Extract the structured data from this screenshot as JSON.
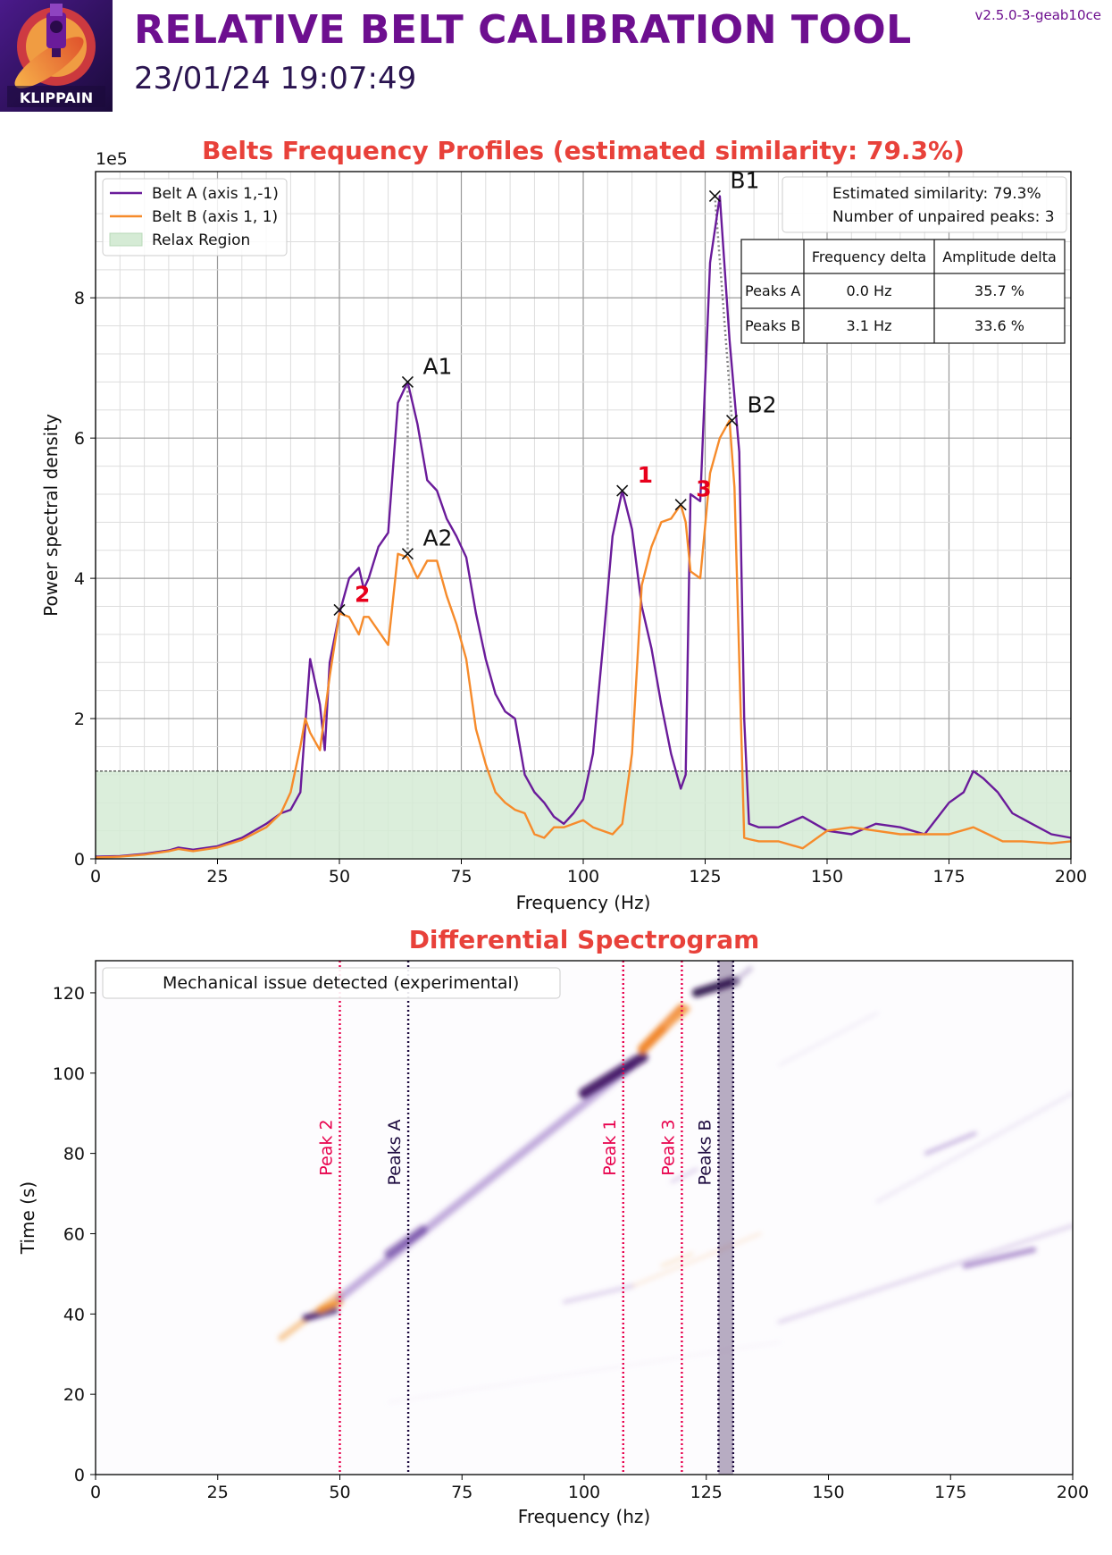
{
  "header": {
    "title": "RELATIVE BELT CALIBRATION TOOL",
    "timestamp": "23/01/24 19:07:49",
    "version": "v2.5.0-3-geab10ce",
    "logo_text": "KLIPPAIN"
  },
  "colors": {
    "title": "#6d0f8f",
    "chart_title": "#e8413a",
    "belt_a": "#6a1b9a",
    "belt_b": "#f68b2b",
    "relax": "#d5ebd5",
    "peak_marker": "#e8004c",
    "peaks_ab": "#1d0a3f"
  },
  "chart_data": [
    {
      "type": "line",
      "title": "Belts Frequency Profiles (estimated similarity: 79.3%)",
      "xlabel": "Frequency (Hz)",
      "ylabel": "Power spectral density",
      "y_multiplier": "1e5",
      "xlim": [
        0,
        200
      ],
      "ylim": [
        0,
        9.8
      ],
      "xticks": [
        0,
        25,
        50,
        75,
        100,
        125,
        150,
        175,
        200
      ],
      "yticks": [
        0,
        2,
        4,
        6,
        8
      ],
      "grid": true,
      "legend_position": "top-left",
      "relax_threshold": 1.25,
      "series": [
        {
          "name": "Belt A (axis 1,-1)",
          "x": [
            0,
            5,
            10,
            15,
            17,
            20,
            25,
            30,
            35,
            38,
            40,
            42,
            44,
            46,
            47,
            48,
            50,
            52,
            54,
            55,
            56,
            58,
            60,
            62,
            64,
            66,
            68,
            70,
            72,
            74,
            76,
            78,
            80,
            82,
            84,
            86,
            88,
            90,
            92,
            94,
            96,
            98,
            100,
            102,
            104,
            106,
            108,
            110,
            112,
            114,
            116,
            118,
            120,
            121,
            122,
            124,
            126,
            128,
            130,
            132,
            133,
            134,
            136,
            140,
            145,
            150,
            155,
            160,
            165,
            170,
            175,
            178,
            180,
            182,
            185,
            188,
            192,
            196,
            200
          ],
          "values": [
            0.03,
            0.04,
            0.07,
            0.12,
            0.16,
            0.13,
            0.18,
            0.3,
            0.5,
            0.65,
            0.7,
            0.95,
            2.85,
            2.2,
            1.55,
            2.8,
            3.5,
            4.0,
            4.15,
            3.85,
            4.0,
            4.45,
            4.65,
            6.5,
            6.8,
            6.2,
            5.4,
            5.25,
            4.85,
            4.6,
            4.3,
            3.5,
            2.85,
            2.35,
            2.1,
            2.0,
            1.2,
            0.95,
            0.8,
            0.6,
            0.5,
            0.65,
            0.85,
            1.5,
            3.0,
            4.6,
            5.25,
            4.7,
            3.6,
            3.0,
            2.2,
            1.5,
            1.0,
            1.2,
            5.2,
            5.1,
            8.5,
            9.45,
            7.4,
            5.8,
            2.0,
            0.5,
            0.45,
            0.45,
            0.6,
            0.4,
            0.35,
            0.5,
            0.45,
            0.35,
            0.8,
            0.95,
            1.25,
            1.15,
            0.95,
            0.65,
            0.5,
            0.35,
            0.3
          ]
        },
        {
          "name": "Belt B (axis 1, 1)",
          "x": [
            0,
            5,
            10,
            15,
            17,
            20,
            25,
            30,
            35,
            38,
            40,
            42,
            43,
            44,
            46,
            48,
            50,
            52,
            54,
            55,
            56,
            58,
            60,
            62,
            64,
            66,
            68,
            70,
            72,
            74,
            76,
            78,
            80,
            82,
            84,
            86,
            88,
            90,
            92,
            94,
            96,
            98,
            100,
            102,
            104,
            106,
            108,
            110,
            112,
            114,
            116,
            118,
            120,
            121,
            122,
            124,
            126,
            128,
            130,
            131,
            133,
            134,
            136,
            140,
            145,
            150,
            155,
            160,
            165,
            170,
            175,
            180,
            183,
            186,
            190,
            196,
            200
          ],
          "values": [
            0.02,
            0.03,
            0.06,
            0.11,
            0.14,
            0.11,
            0.16,
            0.27,
            0.45,
            0.65,
            0.95,
            1.6,
            2.0,
            1.8,
            1.55,
            2.6,
            3.5,
            3.45,
            3.2,
            3.45,
            3.45,
            3.25,
            3.05,
            4.35,
            4.3,
            4.0,
            4.25,
            4.25,
            3.75,
            3.35,
            2.85,
            1.85,
            1.35,
            0.95,
            0.8,
            0.7,
            0.65,
            0.35,
            0.3,
            0.45,
            0.45,
            0.5,
            0.55,
            0.45,
            0.4,
            0.35,
            0.5,
            1.5,
            3.9,
            4.45,
            4.8,
            4.85,
            5.05,
            4.8,
            4.1,
            4.0,
            5.5,
            6.0,
            6.25,
            5.3,
            0.3,
            0.28,
            0.25,
            0.25,
            0.15,
            0.4,
            0.45,
            0.4,
            0.35,
            0.35,
            0.35,
            0.45,
            0.35,
            0.25,
            0.25,
            0.22,
            0.25
          ]
        }
      ],
      "relax_label": "Relax Region",
      "peak_annotations": [
        {
          "label": "A1",
          "x": 64,
          "y": 6.8
        },
        {
          "label": "A2",
          "x": 64,
          "y": 4.35
        },
        {
          "label": "B1",
          "x": 127,
          "y": 9.45
        },
        {
          "label": "B2",
          "x": 130.5,
          "y": 6.25
        }
      ],
      "unpaired_peaks": [
        {
          "label": "1",
          "x": 108,
          "y": 5.25
        },
        {
          "label": "2",
          "x": 50,
          "y": 3.55
        },
        {
          "label": "3",
          "x": 120,
          "y": 5.05
        }
      ],
      "info_box": {
        "line1": "Estimated similarity: 79.3%",
        "line2": "Number of unpaired peaks: 3"
      },
      "table": {
        "headers": [
          "",
          "Frequency delta",
          "Amplitude delta"
        ],
        "rows": [
          [
            "Peaks A",
            "0.0 Hz",
            "35.7 %"
          ],
          [
            "Peaks B",
            "3.1 Hz",
            "33.6 %"
          ]
        ]
      }
    },
    {
      "type": "heatmap",
      "title": "Differential Spectrogram",
      "xlabel": "Frequency (hz)",
      "ylabel": "Time (s)",
      "xlim": [
        0,
        200
      ],
      "ylim": [
        0,
        128
      ],
      "xticks": [
        0,
        25,
        50,
        75,
        100,
        125,
        150,
        175,
        200
      ],
      "yticks": [
        0,
        20,
        40,
        60,
        80,
        100,
        120
      ],
      "legend_text": "Mechanical issue detected (experimental)",
      "vlines": [
        {
          "label": "Peak 2",
          "x": 50,
          "kind": "unpaired"
        },
        {
          "label": "Peaks A",
          "x": 64,
          "kind": "paired"
        },
        {
          "label": "Peak 1",
          "x": 108,
          "kind": "unpaired"
        },
        {
          "label": "Peak 3",
          "x": 120,
          "kind": "unpaired"
        },
        {
          "label": "Peaks B",
          "x": 127.5,
          "x2": 130.5,
          "kind": "paired"
        }
      ]
    }
  ]
}
